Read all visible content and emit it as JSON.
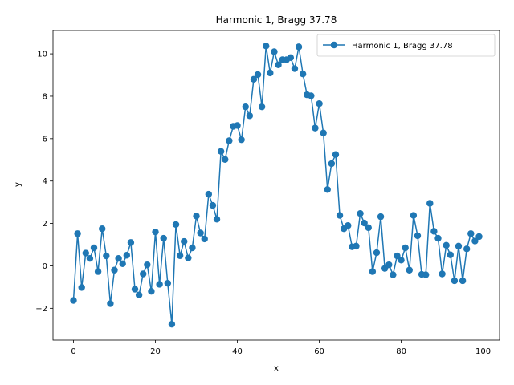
{
  "chart_data": {
    "type": "line",
    "title": "Harmonic 1, Bragg 37.78",
    "xlabel": "x",
    "ylabel": "y",
    "xlim": [
      -5,
      104
    ],
    "ylim": [
      -3.5,
      11.1
    ],
    "xticks": [
      0,
      20,
      40,
      60,
      80,
      100
    ],
    "yticks": [
      -2,
      0,
      2,
      4,
      6,
      8,
      10
    ],
    "grid": false,
    "legend_position": "upper-right",
    "series": [
      {
        "name": "Harmonic 1, Bragg 37.78",
        "color": "#1f77b4",
        "marker": "circle",
        "x": [
          0,
          1,
          2,
          3,
          4,
          5,
          6,
          7,
          8,
          9,
          10,
          11,
          12,
          13,
          14,
          15,
          16,
          17,
          18,
          19,
          20,
          21,
          22,
          23,
          24,
          25,
          26,
          27,
          28,
          29,
          30,
          31,
          32,
          33,
          34,
          35,
          36,
          37,
          38,
          39,
          40,
          41,
          42,
          43,
          44,
          45,
          46,
          47,
          48,
          49,
          50,
          51,
          52,
          53,
          54,
          55,
          56,
          57,
          58,
          59,
          60,
          61,
          62,
          63,
          64,
          65,
          66,
          67,
          68,
          69,
          70,
          71,
          72,
          73,
          74,
          75,
          76,
          77,
          78,
          79,
          80,
          81,
          82,
          83,
          84,
          85,
          86,
          87,
          88,
          89,
          90,
          91,
          92,
          93,
          94,
          95,
          96,
          97,
          98,
          99
        ],
        "values": [
          -1.63,
          1.52,
          -1.02,
          0.6,
          0.35,
          0.85,
          -0.27,
          1.75,
          0.47,
          -1.78,
          -0.2,
          0.35,
          0.1,
          0.5,
          1.1,
          -1.1,
          -1.37,
          -0.38,
          0.05,
          -1.2,
          1.6,
          -0.87,
          1.3,
          -0.82,
          -2.75,
          1.95,
          0.48,
          1.15,
          0.37,
          0.85,
          2.35,
          1.55,
          1.27,
          3.38,
          2.85,
          2.2,
          5.4,
          5.02,
          5.9,
          6.58,
          6.62,
          5.95,
          7.5,
          7.08,
          8.8,
          9.02,
          7.5,
          10.37,
          9.1,
          10.1,
          9.48,
          9.72,
          9.72,
          9.82,
          9.3,
          10.33,
          9.05,
          8.07,
          8.02,
          6.5,
          7.65,
          6.27,
          3.6,
          4.82,
          5.25,
          2.38,
          1.75,
          1.9,
          0.9,
          0.93,
          2.47,
          2.02,
          1.8,
          -0.27,
          0.62,
          2.32,
          -0.12,
          0.05,
          -0.42,
          0.47,
          0.27,
          0.85,
          -0.2,
          2.38,
          1.42,
          -0.4,
          -0.42,
          2.95,
          1.63,
          1.3,
          -0.38,
          0.97,
          0.52,
          -0.7,
          0.93,
          -0.7,
          0.8,
          1.52,
          1.17,
          1.38
        ]
      }
    ]
  }
}
